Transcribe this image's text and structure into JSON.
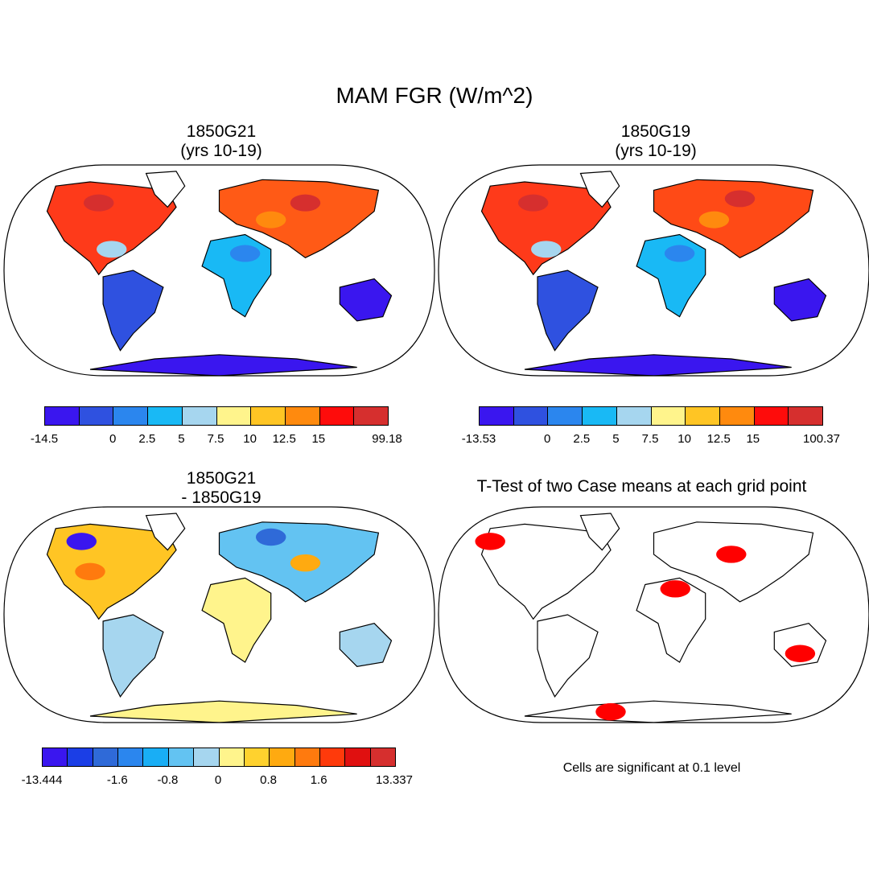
{
  "title": "MAM FGR (W/m^2)",
  "panels": [
    {
      "title_line1": "1850G21",
      "title_line2": "(yrs 10-19)",
      "colorbar": {
        "ticks": [
          "-14.5",
          "0",
          "2.5",
          "5",
          "7.5",
          "10",
          "12.5",
          "15",
          "99.18"
        ],
        "colors": [
          "#3a16ef",
          "#2f51e0",
          "#2b86ee",
          "#19b9f5",
          "#a6d6ef",
          "#fff48c",
          "#ffc524",
          "#ff8a0e",
          "#fe0c0b",
          "#d62f2e"
        ]
      }
    },
    {
      "title_line1": "1850G19",
      "title_line2": "(yrs 10-19)",
      "colorbar": {
        "ticks": [
          "-13.53",
          "0",
          "2.5",
          "5",
          "7.5",
          "10",
          "12.5",
          "15",
          "100.37"
        ],
        "colors": [
          "#3a16ef",
          "#2f51e0",
          "#2b86ee",
          "#19b9f5",
          "#a6d6ef",
          "#fff48c",
          "#ffc524",
          "#ff8a0e",
          "#fe0c0b",
          "#d62f2e"
        ]
      }
    },
    {
      "title_line1": "1850G21",
      "title_line2": "- 1850G19",
      "colorbar": {
        "ticks": [
          "-13.444",
          "-1.6",
          "-0.8",
          "0",
          "0.8",
          "1.6",
          "13.337"
        ],
        "colors": [
          "#3a16ef",
          "#1b3ee6",
          "#2f6ad8",
          "#2b86ee",
          "#19aef5",
          "#63c3f2",
          "#a6d6ef",
          "#fff48c",
          "#ffd22e",
          "#ffaa10",
          "#ff7a0e",
          "#ff3a0b",
          "#e01010",
          "#d62f2e"
        ]
      }
    },
    {
      "title_line1": "T-Test of two Case means at each grid point",
      "note": "Cells are significant at 0.1 level",
      "significance_color": "#ff0000"
    }
  ]
}
